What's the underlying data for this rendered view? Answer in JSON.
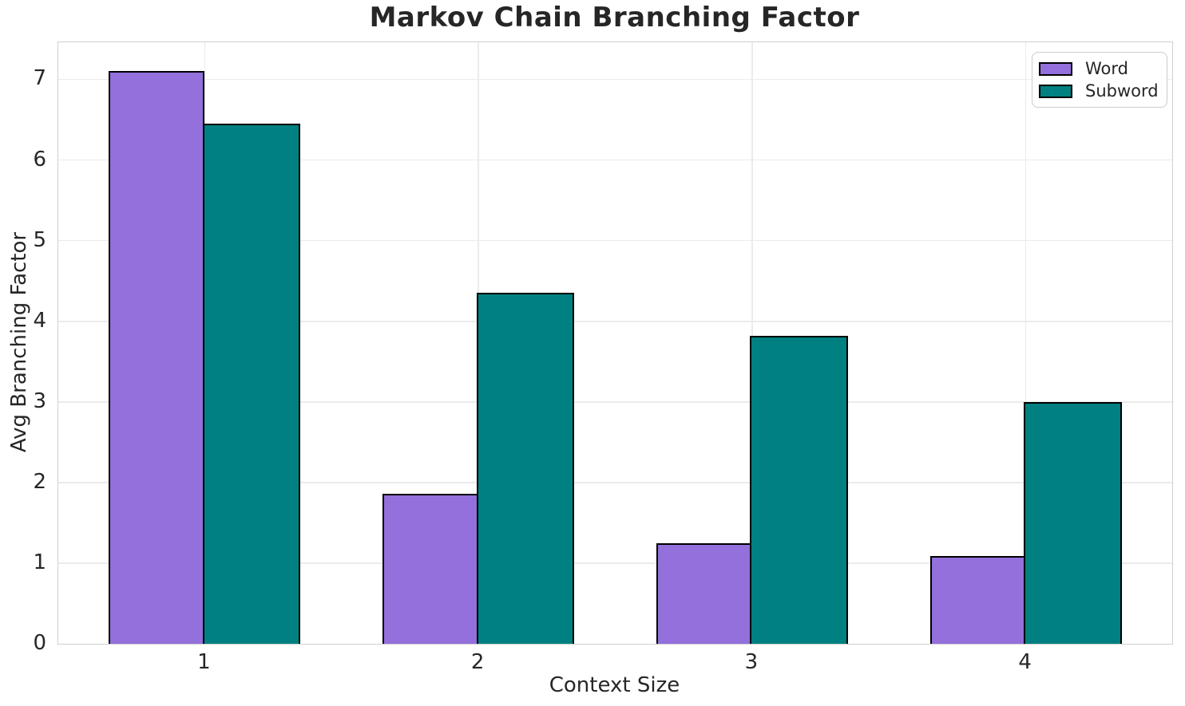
{
  "figure": {
    "background": "#ffffff"
  },
  "chart_data": {
    "type": "bar",
    "title": "Markov Chain Branching Factor",
    "xlabel": "Context Size",
    "ylabel": "Avg Branching Factor",
    "categories": [
      "1",
      "2",
      "3",
      "4"
    ],
    "series": [
      {
        "name": "Word",
        "color": "#9370DB",
        "values": [
          7.1,
          1.86,
          1.25,
          1.09
        ]
      },
      {
        "name": "Subword",
        "color": "#008080",
        "values": [
          6.45,
          4.35,
          3.82,
          3.0
        ]
      }
    ],
    "ylim": [
      0,
      7.46
    ],
    "yticks": [
      0,
      1,
      2,
      3,
      4,
      5,
      6,
      7
    ],
    "bar_edge_color": "#000000",
    "grid": true,
    "legend_position": "upper right",
    "colors": {
      "grid": "#ebebeb",
      "spine": "#d0d0d0",
      "text": "#262626"
    }
  }
}
